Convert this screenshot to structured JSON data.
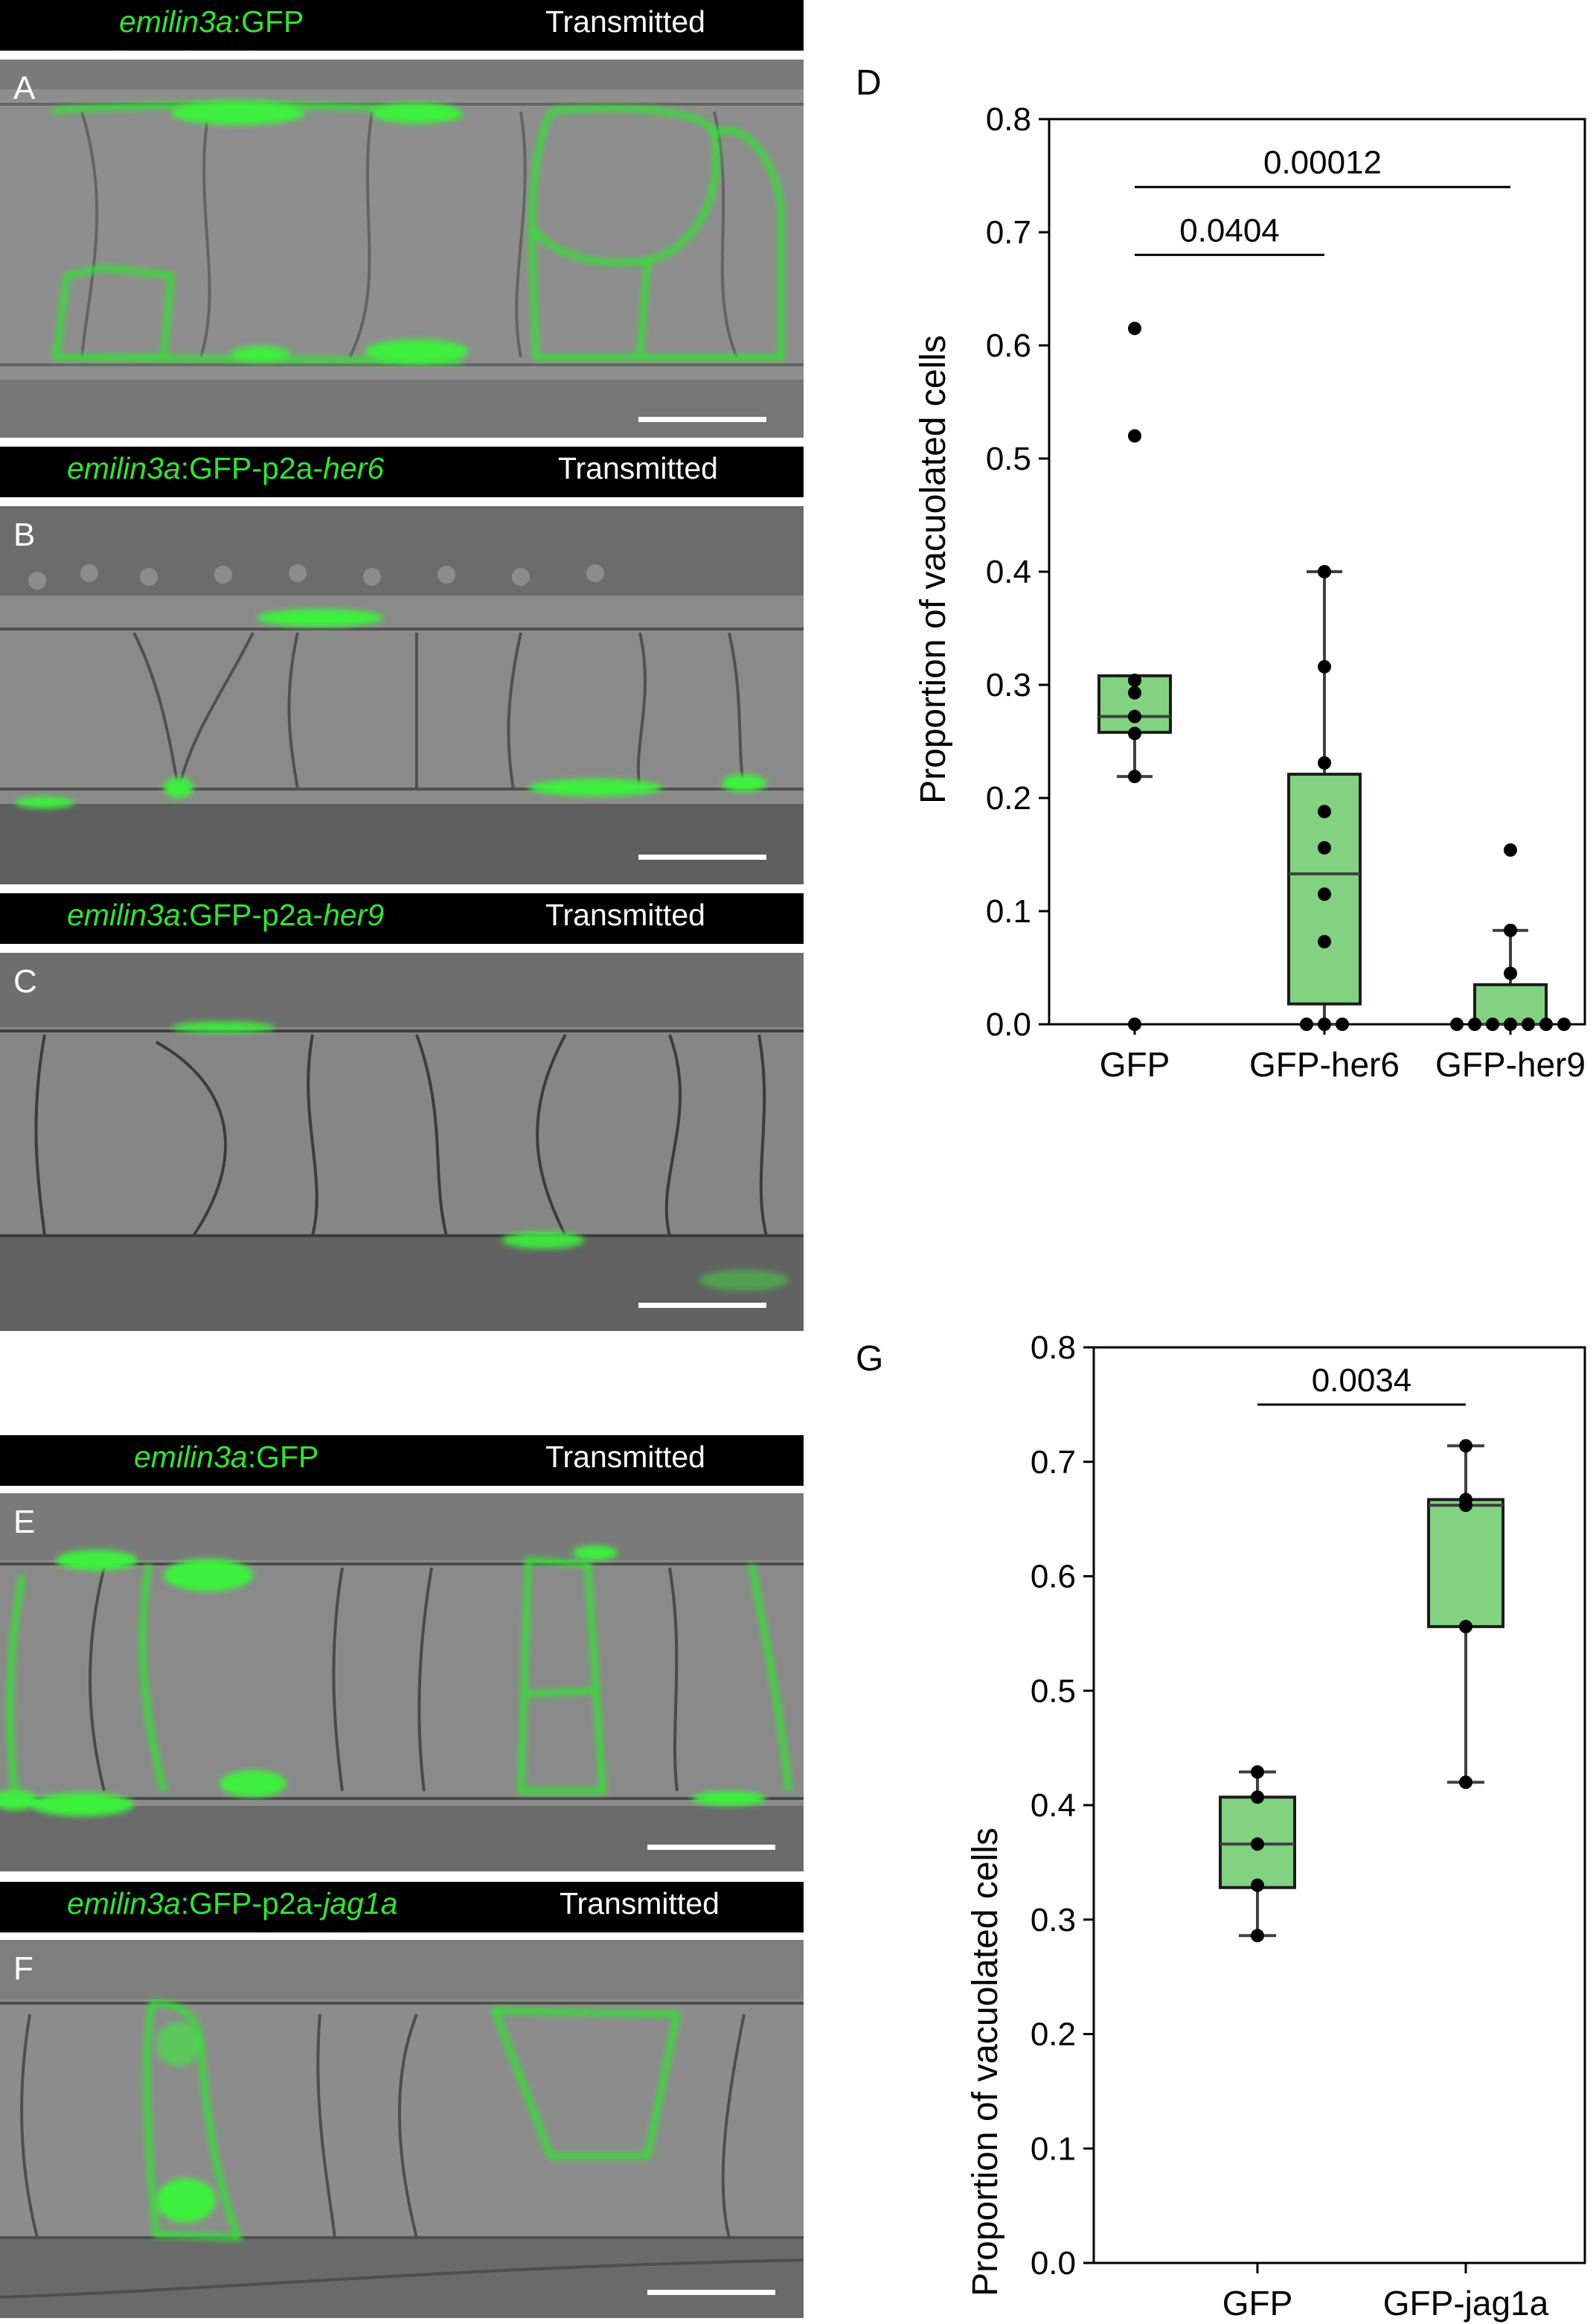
{
  "colors": {
    "box_fill": "#82d282",
    "header_green": "#33e233",
    "header_bg": "#000000",
    "point": "#000000"
  },
  "panels": {
    "A": {
      "label": "A",
      "header_green_prefix": "emilin3a",
      "header_green_suffix": ":GFP",
      "header_white": "Transmitted"
    },
    "B": {
      "label": "B",
      "header_green_prefix": "emilin3a",
      "header_green_mid": ":GFP-p2a-",
      "header_green_gene": "her6",
      "header_white": "Transmitted"
    },
    "C": {
      "label": "C",
      "header_green_prefix": "emilin3a",
      "header_green_mid": ":GFP-p2a-",
      "header_green_gene": "her9",
      "header_white": "Transmitted"
    },
    "E": {
      "label": "E",
      "header_green_prefix": "emilin3a",
      "header_green_suffix": ":GFP",
      "header_white": "Transmitted"
    },
    "F": {
      "label": "F",
      "header_green_prefix": "emilin3a",
      "header_green_mid": ":GFP-p2a-",
      "header_green_gene": "jag1a",
      "header_white": "Transmitted"
    }
  },
  "chart_data": [
    {
      "panel_label": "D",
      "type": "box",
      "ylabel": "Proportion of vacuolated cells",
      "ylim": [
        0,
        0.8
      ],
      "yticks": [
        "0.0",
        "0.1",
        "0.2",
        "0.3",
        "0.4",
        "0.5",
        "0.6",
        "0.7",
        "0.8"
      ],
      "categories": [
        "GFP",
        "GFP-her6",
        "GFP-her9"
      ],
      "boxes": [
        {
          "q1": 0.258,
          "median": 0.272,
          "q3": 0.308,
          "whisker_low": 0.219,
          "whisker_high": 0.308,
          "points": [
            0.615,
            0.52,
            0.304,
            0.293,
            0.272,
            0.257,
            0.219,
            0.0
          ]
        },
        {
          "q1": 0.018,
          "median": 0.133,
          "q3": 0.221,
          "whisker_low": 0.0,
          "whisker_high": 0.4,
          "points": [
            0.4,
            0.316,
            0.231,
            0.188,
            0.156,
            0.115,
            0.073,
            0.0,
            0.0,
            0.0
          ]
        },
        {
          "q1": 0.0,
          "median": 0.0,
          "q3": 0.035,
          "whisker_low": 0.0,
          "whisker_high": 0.083,
          "points": [
            0.154,
            0.083,
            0.045,
            0.0,
            0.0,
            0.0,
            0.0,
            0.0,
            0.0,
            0.0
          ]
        }
      ],
      "annotations": [
        {
          "from": 0,
          "to": 1,
          "text": "0.0404",
          "y": 0.68
        },
        {
          "from": 0,
          "to": 2,
          "text": "0.00012",
          "y": 0.74
        }
      ]
    },
    {
      "panel_label": "G",
      "type": "box",
      "ylabel": "Proportion of vacuolated cells",
      "ylim": [
        0,
        0.8
      ],
      "yticks": [
        "0.0",
        "0.1",
        "0.2",
        "0.3",
        "0.4",
        "0.5",
        "0.6",
        "0.7",
        "0.8"
      ],
      "categories": [
        "GFP",
        "GFP-jag1a"
      ],
      "boxes": [
        {
          "q1": 0.328,
          "median": 0.366,
          "q3": 0.407,
          "whisker_low": 0.286,
          "whisker_high": 0.429,
          "points": [
            0.429,
            0.407,
            0.366,
            0.33,
            0.286
          ]
        },
        {
          "q1": 0.556,
          "median": 0.662,
          "q3": 0.667,
          "whisker_low": 0.42,
          "whisker_high": 0.714,
          "points": [
            0.714,
            0.667,
            0.662,
            0.556,
            0.42
          ]
        }
      ],
      "annotations": [
        {
          "from": 0,
          "to": 1,
          "text": "0.0034",
          "y": 0.75
        }
      ]
    }
  ]
}
